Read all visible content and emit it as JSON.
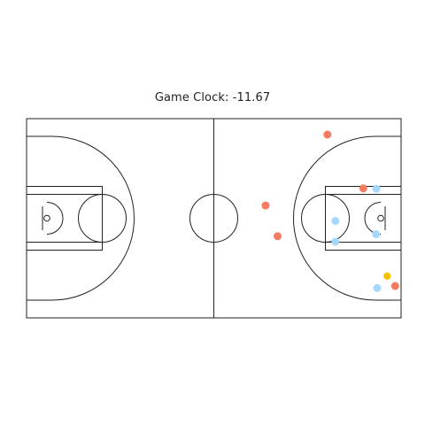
{
  "chart_data": {
    "type": "scatter",
    "title": "Game Clock: -11.67",
    "xlim": [
      0,
      94
    ],
    "ylim": [
      0,
      50
    ],
    "grid": false,
    "legend": "none",
    "colors": {
      "team_a": "#f47c5f",
      "team_b": "#a6d8ff",
      "ball": "#f5c400",
      "court_line": "#222222"
    },
    "series": [
      {
        "group": "team_a",
        "points": [
          {
            "x": 75.5,
            "y": 46.0
          },
          {
            "x": 84.5,
            "y": 32.5
          },
          {
            "x": 60.0,
            "y": 28.2
          },
          {
            "x": 63.0,
            "y": 20.5
          },
          {
            "x": 92.5,
            "y": 8.0
          }
        ]
      },
      {
        "group": "team_b",
        "points": [
          {
            "x": 87.8,
            "y": 32.4
          },
          {
            "x": 77.5,
            "y": 24.3
          },
          {
            "x": 87.7,
            "y": 21.0
          },
          {
            "x": 77.5,
            "y": 19.1
          },
          {
            "x": 88.0,
            "y": 7.5
          }
        ]
      },
      {
        "group": "ball",
        "points": [
          {
            "x": 90.5,
            "y": 10.5
          }
        ]
      }
    ]
  }
}
